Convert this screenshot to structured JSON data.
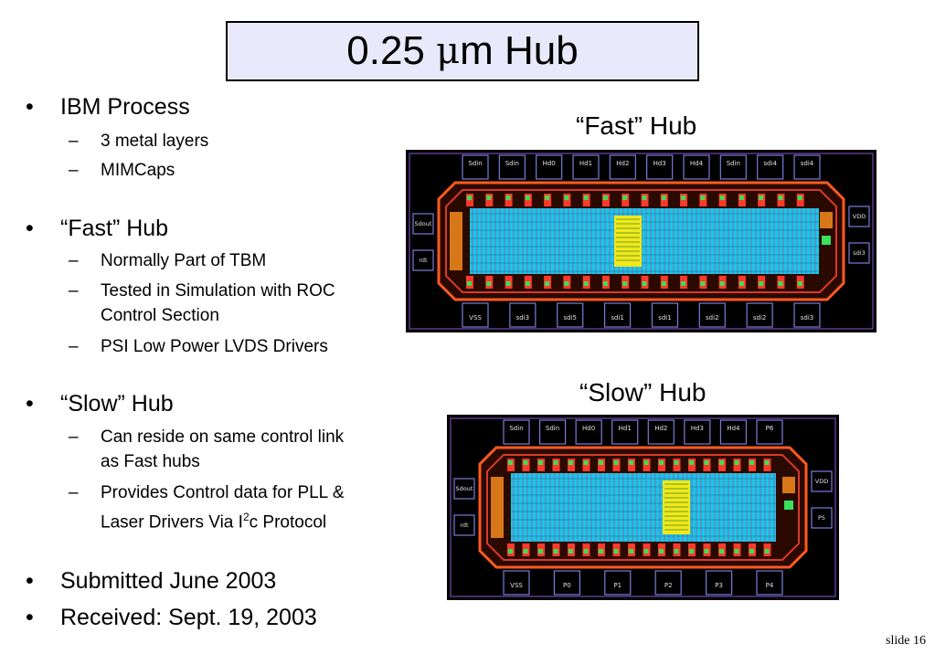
{
  "title": {
    "text_prefix": "0.25 ",
    "mu": "μ",
    "text_suffix": "m Hub"
  },
  "bullets": [
    {
      "text": "IBM Process",
      "subs": [
        "3 metal layers",
        "MIMCaps"
      ]
    },
    {
      "text": "“Fast” Hub",
      "subs": [
        "Normally Part of TBM",
        "Tested in Simulation with ROC",
        "Control Section",
        "PSI Low Power LVDS Drivers"
      ]
    },
    {
      "text": "“Slow” Hub",
      "subs": [
        "Can reside on same control link",
        "as Fast hubs",
        "Provides Control data for PLL &",
        "Laser Drivers Via I",
        "c Protocol"
      ],
      "superscript": "2"
    },
    {
      "text": "Submitted June 2003"
    },
    {
      "text": "Received: Sept. 19, 2003"
    }
  ],
  "bullet_char": "•",
  "dash_char": "–",
  "figures": {
    "fast": {
      "caption": "“Fast” Hub",
      "top_pads": [
        "Sdin",
        "Sdin",
        "Hd0",
        "Hd1",
        "Hd2",
        "Hd3",
        "Hd4",
        "Sdin",
        "sdi4",
        "sdi4"
      ],
      "bottom_pads": [
        "VSS",
        "sdi3",
        "sdi5",
        "sdi1",
        "sdi1",
        "sdi2",
        "sdi2",
        "sdi3"
      ],
      "left_pads": [
        "Sdout",
        "rdt"
      ],
      "right_pads": [
        "VDD",
        "sdi3"
      ]
    },
    "slow": {
      "caption": "“Slow” Hub",
      "top_pads": [
        "Sdin",
        "Sdin",
        "Hd0",
        "Hd1",
        "Hd2",
        "Hd3",
        "Hd4",
        "P6"
      ],
      "bottom_pads": [
        "VSS",
        "P0",
        "P1",
        "P2",
        "P3",
        "P4"
      ],
      "left_pads": [
        "Sdout",
        "rdt"
      ],
      "right_pads": [
        "VDD",
        "P5"
      ]
    }
  },
  "slide_number": "slide 16"
}
